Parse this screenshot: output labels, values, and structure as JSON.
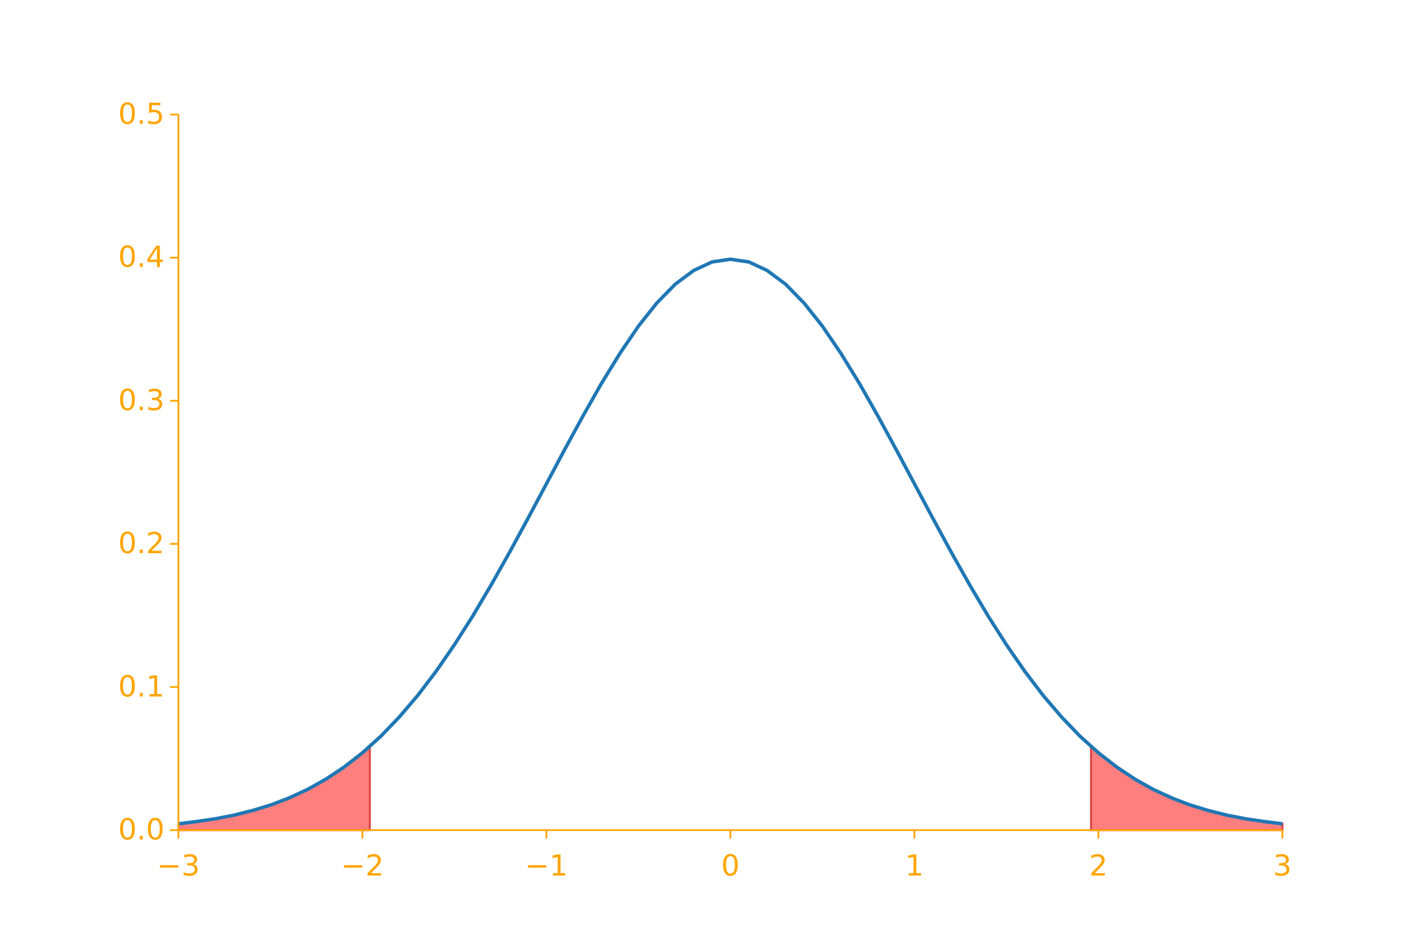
{
  "chart_data": {
    "type": "line",
    "x": [
      -3.0,
      -2.9,
      -2.8,
      -2.7,
      -2.6,
      -2.5,
      -2.4,
      -2.3,
      -2.2,
      -2.1,
      -2.0,
      -1.9,
      -1.8,
      -1.7,
      -1.6,
      -1.5,
      -1.4,
      -1.3,
      -1.2,
      -1.1,
      -1.0,
      -0.9,
      -0.8,
      -0.7,
      -0.6,
      -0.5,
      -0.4,
      -0.3,
      -0.2,
      -0.1,
      0.0,
      0.1,
      0.2,
      0.3,
      0.4,
      0.5,
      0.6,
      0.7,
      0.8,
      0.9,
      1.0,
      1.1,
      1.2,
      1.3,
      1.4,
      1.5,
      1.6,
      1.7,
      1.8,
      1.9,
      2.0,
      2.1,
      2.2,
      2.3,
      2.4,
      2.5,
      2.6,
      2.7,
      2.8,
      2.9,
      3.0
    ],
    "values": [
      0.0044,
      0.006,
      0.0079,
      0.0104,
      0.0136,
      0.0175,
      0.0224,
      0.0283,
      0.0355,
      0.044,
      0.054,
      0.0656,
      0.079,
      0.094,
      0.1109,
      0.1295,
      0.1497,
      0.1714,
      0.1942,
      0.2179,
      0.242,
      0.2661,
      0.2897,
      0.3123,
      0.3332,
      0.3521,
      0.3683,
      0.3814,
      0.391,
      0.397,
      0.3989,
      0.397,
      0.391,
      0.3814,
      0.3683,
      0.3521,
      0.3332,
      0.3123,
      0.2897,
      0.2661,
      0.242,
      0.2179,
      0.1942,
      0.1714,
      0.1497,
      0.1295,
      0.1109,
      0.094,
      0.079,
      0.0656,
      0.054,
      0.044,
      0.0355,
      0.0283,
      0.0224,
      0.0175,
      0.0136,
      0.0104,
      0.0079,
      0.006,
      0.0044
    ],
    "color": "#1f77b4",
    "shaded": [
      {
        "x": [
          -3.0,
          -2.9,
          -2.8,
          -2.7,
          -2.6,
          -2.5,
          -2.4,
          -2.3,
          -2.2,
          -2.1,
          -2.0,
          -1.96
        ],
        "values": [
          0.0044,
          0.006,
          0.0079,
          0.0104,
          0.0136,
          0.0175,
          0.0224,
          0.0283,
          0.0355,
          0.044,
          0.054,
          0.0584
        ],
        "color": "#ff7f7f"
      },
      {
        "x": [
          1.96,
          2.0,
          2.1,
          2.2,
          2.3,
          2.4,
          2.5,
          2.6,
          2.7,
          2.8,
          2.9,
          3.0
        ],
        "values": [
          0.0584,
          0.054,
          0.044,
          0.0355,
          0.0283,
          0.0224,
          0.0175,
          0.0136,
          0.0104,
          0.0079,
          0.006,
          0.0044
        ],
        "color": "#ff7f7f"
      }
    ],
    "xlim": [
      -3,
      3
    ],
    "xticks": [
      {
        "value": -3,
        "label": "−3"
      },
      {
        "value": -2,
        "label": "−2"
      },
      {
        "value": -1,
        "label": "−1"
      },
      0,
      1,
      2,
      3
    ],
    "ylim": [
      0,
      0.5
    ],
    "yticks": [
      {
        "value": 0,
        "label": "0.0"
      },
      0.1,
      0.2,
      0.3,
      0.4,
      0.5
    ],
    "axis_color": "#ffa500",
    "grid": false
  }
}
